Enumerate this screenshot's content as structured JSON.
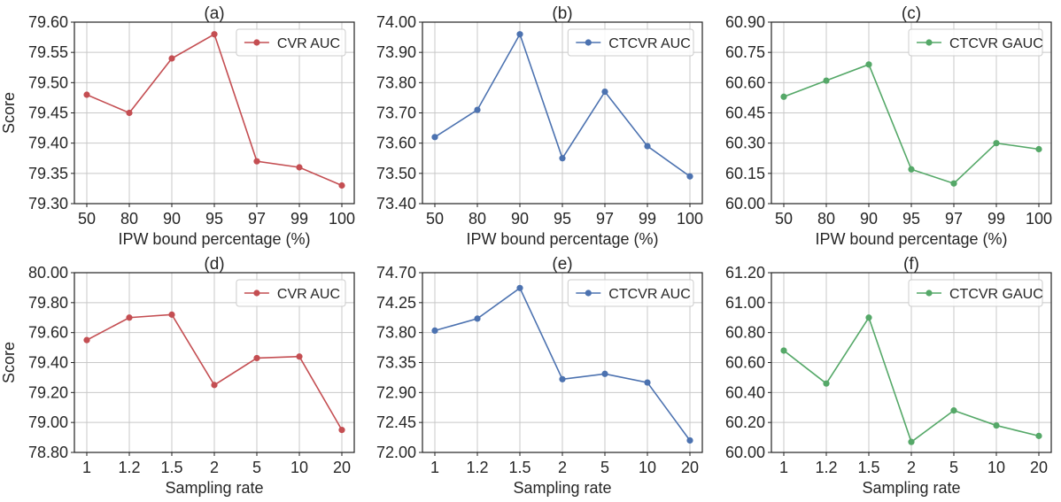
{
  "chart_data": [
    {
      "type": "line",
      "title": "(a)",
      "xlabel": "IPW bound percentage (%)",
      "ylabel": "Score",
      "categories": [
        "50",
        "80",
        "90",
        "95",
        "97",
        "99",
        "100"
      ],
      "series": [
        {
          "name": "CVR AUC",
          "color": "#c44e52",
          "values": [
            79.48,
            79.45,
            79.54,
            79.58,
            79.37,
            79.36,
            79.33
          ]
        }
      ],
      "ylim": [
        79.3,
        79.6
      ],
      "yticks": [
        "79.30",
        "79.35",
        "79.40",
        "79.45",
        "79.50",
        "79.55",
        "79.60"
      ],
      "legend": "top-right",
      "grid": true
    },
    {
      "type": "line",
      "title": "(b)",
      "xlabel": "IPW bound percentage (%)",
      "ylabel": "",
      "categories": [
        "50",
        "80",
        "90",
        "95",
        "97",
        "99",
        "100"
      ],
      "series": [
        {
          "name": "CTCVR AUC",
          "color": "#4c72b0",
          "values": [
            73.62,
            73.71,
            73.96,
            73.55,
            73.77,
            73.59,
            73.49
          ]
        }
      ],
      "ylim": [
        73.4,
        74.0
      ],
      "yticks": [
        "73.40",
        "73.50",
        "73.60",
        "73.70",
        "73.80",
        "73.90",
        "74.00"
      ],
      "legend": "top-right",
      "grid": true
    },
    {
      "type": "line",
      "title": "(c)",
      "xlabel": "IPW bound percentage (%)",
      "ylabel": "",
      "categories": [
        "50",
        "80",
        "90",
        "95",
        "97",
        "99",
        "100"
      ],
      "series": [
        {
          "name": "CTCVR GAUC",
          "color": "#55a868",
          "values": [
            60.53,
            60.61,
            60.69,
            60.17,
            60.1,
            60.3,
            60.27
          ]
        }
      ],
      "ylim": [
        60.0,
        60.9
      ],
      "yticks": [
        "60.00",
        "60.15",
        "60.30",
        "60.45",
        "60.60",
        "60.75",
        "60.90"
      ],
      "legend": "top-right",
      "grid": true
    },
    {
      "type": "line",
      "title": "(d)",
      "xlabel": "Sampling rate",
      "ylabel": "Score",
      "categories": [
        "1",
        "1.2",
        "1.5",
        "2",
        "5",
        "10",
        "20"
      ],
      "series": [
        {
          "name": "CVR AUC",
          "color": "#c44e52",
          "values": [
            79.55,
            79.7,
            79.72,
            79.25,
            79.43,
            79.44,
            78.95
          ]
        }
      ],
      "ylim": [
        78.8,
        80.0
      ],
      "yticks": [
        "78.80",
        "79.00",
        "79.20",
        "79.40",
        "79.60",
        "79.80",
        "80.00"
      ],
      "legend": "top-right",
      "grid": true
    },
    {
      "type": "line",
      "title": "(e)",
      "xlabel": "Sampling rate",
      "ylabel": "",
      "categories": [
        "1",
        "1.2",
        "1.5",
        "2",
        "5",
        "10",
        "20"
      ],
      "series": [
        {
          "name": "CTCVR AUC",
          "color": "#4c72b0",
          "values": [
            73.83,
            74.01,
            74.47,
            73.1,
            73.18,
            73.05,
            72.18
          ]
        }
      ],
      "ylim": [
        72.0,
        74.7
      ],
      "yticks": [
        "72.00",
        "72.45",
        "72.90",
        "73.35",
        "73.80",
        "74.25",
        "74.70"
      ],
      "legend": "top-right",
      "grid": true
    },
    {
      "type": "line",
      "title": "(f)",
      "xlabel": "Sampling rate",
      "ylabel": "",
      "categories": [
        "1",
        "1.2",
        "1.5",
        "2",
        "5",
        "10",
        "20"
      ],
      "series": [
        {
          "name": "CTCVR GAUC",
          "color": "#55a868",
          "values": [
            60.68,
            60.46,
            60.9,
            60.07,
            60.28,
            60.18,
            60.11
          ]
        }
      ],
      "ylim": [
        60.0,
        61.2
      ],
      "yticks": [
        "60.00",
        "60.20",
        "60.40",
        "60.60",
        "60.80",
        "61.00",
        "61.20"
      ],
      "legend": "top-right",
      "grid": true
    }
  ]
}
